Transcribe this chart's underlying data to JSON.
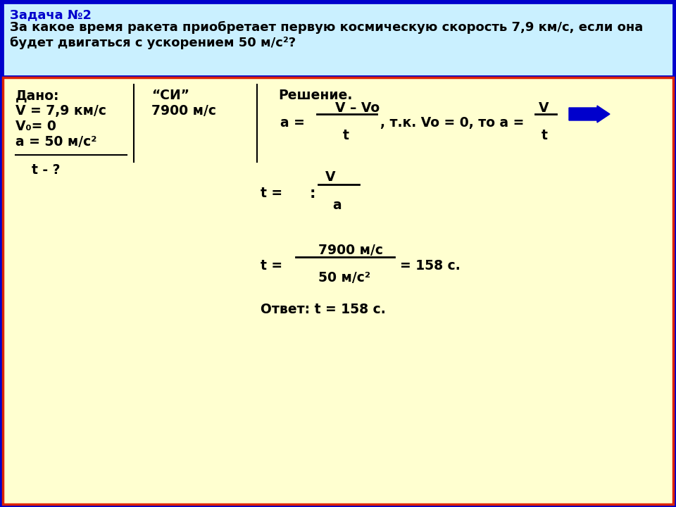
{
  "header_bg": "#caf0ff",
  "header_border_color": "#0000cc",
  "body_bg": "#ffffd0",
  "body_border_color": "#dd2200",
  "outer_bg": "#0000cc",
  "title_text": "Задача №2",
  "title_color": "#0000cc",
  "problem_line1": "За какое время ракета приобретает первую космическую скорость 7,9 км/с, если она",
  "problem_line2": "будет двигаться с ускорением 50 м/с²?",
  "body_text_color": "#000000",
  "arrow_color": "#0000cc",
  "figsize": [
    9.6,
    7.2
  ],
  "dpi": 100
}
